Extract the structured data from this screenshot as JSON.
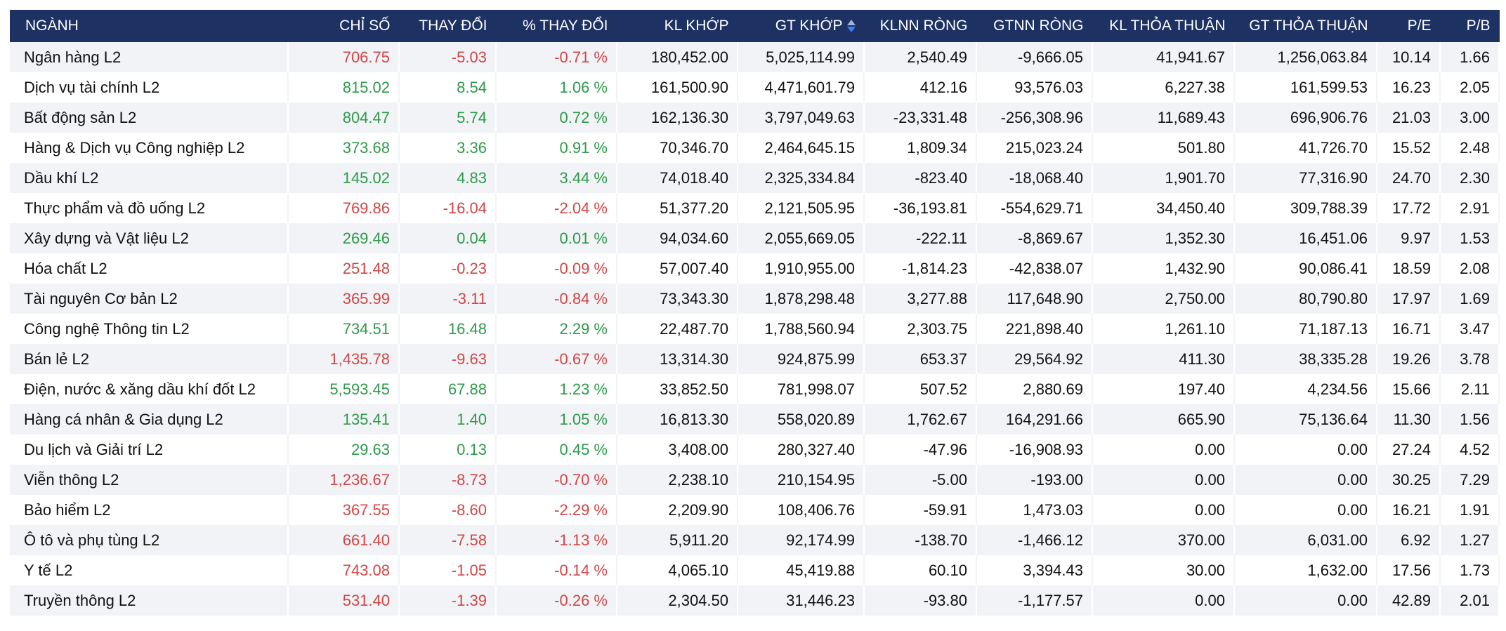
{
  "colors": {
    "header_bg": "#1e3163",
    "up": "#2e9a4a",
    "down": "#d14646",
    "stripe": "#f1f3f6"
  },
  "headers": {
    "nganh": "NGÀNH",
    "chi_so": "CHỈ SỐ",
    "thay_doi": "THAY ĐỔI",
    "pct_thay_doi": "% THAY ĐỔI",
    "kl_khop": "KL KHỚP",
    "gt_khop": "GT KHỚP",
    "klnn_rong": "KLNN RÒNG",
    "gtnn_rong": "GTNN RÒNG",
    "kl_thoa_thuan": "KL THỎA THUẬN",
    "gt_thoa_thuan": "GT THỎA THUẬN",
    "pe": "P/E",
    "pb": "P/B"
  },
  "sort_icon": "sort-icon",
  "rows": [
    {
      "name": "Ngân hàng L2",
      "trend": "down",
      "chi_so": "706.75",
      "thay_doi": "-5.03",
      "pct": "-0.71 %",
      "kl_khop": "180,452.00",
      "gt_khop": "5,025,114.99",
      "klnn": "2,540.49",
      "gtnn": "-9,666.05",
      "kl_tt": "41,941.67",
      "gt_tt": "1,256,063.84",
      "pe": "10.14",
      "pb": "1.66"
    },
    {
      "name": "Dịch vụ tài chính L2",
      "trend": "up",
      "chi_so": "815.02",
      "thay_doi": "8.54",
      "pct": "1.06 %",
      "kl_khop": "161,500.90",
      "gt_khop": "4,471,601.79",
      "klnn": "412.16",
      "gtnn": "93,576.03",
      "kl_tt": "6,227.38",
      "gt_tt": "161,599.53",
      "pe": "16.23",
      "pb": "2.05"
    },
    {
      "name": "Bất động sản L2",
      "trend": "up",
      "chi_so": "804.47",
      "thay_doi": "5.74",
      "pct": "0.72 %",
      "kl_khop": "162,136.30",
      "gt_khop": "3,797,049.63",
      "klnn": "-23,331.48",
      "gtnn": "-256,308.96",
      "kl_tt": "11,689.43",
      "gt_tt": "696,906.76",
      "pe": "21.03",
      "pb": "3.00"
    },
    {
      "name": "Hàng & Dịch vụ Công nghiệp L2",
      "trend": "up",
      "chi_so": "373.68",
      "thay_doi": "3.36",
      "pct": "0.91 %",
      "kl_khop": "70,346.70",
      "gt_khop": "2,464,645.15",
      "klnn": "1,809.34",
      "gtnn": "215,023.24",
      "kl_tt": "501.80",
      "gt_tt": "41,726.70",
      "pe": "15.52",
      "pb": "2.48"
    },
    {
      "name": "Dầu khí L2",
      "trend": "up",
      "chi_so": "145.02",
      "thay_doi": "4.83",
      "pct": "3.44 %",
      "kl_khop": "74,018.40",
      "gt_khop": "2,325,334.84",
      "klnn": "-823.40",
      "gtnn": "-18,068.40",
      "kl_tt": "1,901.70",
      "gt_tt": "77,316.90",
      "pe": "24.70",
      "pb": "2.30"
    },
    {
      "name": "Thực phẩm và đồ uống L2",
      "trend": "down",
      "chi_so": "769.86",
      "thay_doi": "-16.04",
      "pct": "-2.04 %",
      "kl_khop": "51,377.20",
      "gt_khop": "2,121,505.95",
      "klnn": "-36,193.81",
      "gtnn": "-554,629.71",
      "kl_tt": "34,450.40",
      "gt_tt": "309,788.39",
      "pe": "17.72",
      "pb": "2.91"
    },
    {
      "name": "Xây dựng và Vật liệu L2",
      "trend": "up",
      "chi_so": "269.46",
      "thay_doi": "0.04",
      "pct": "0.01 %",
      "kl_khop": "94,034.60",
      "gt_khop": "2,055,669.05",
      "klnn": "-222.11",
      "gtnn": "-8,869.67",
      "kl_tt": "1,352.30",
      "gt_tt": "16,451.06",
      "pe": "9.97",
      "pb": "1.53"
    },
    {
      "name": "Hóa chất L2",
      "trend": "down",
      "chi_so": "251.48",
      "thay_doi": "-0.23",
      "pct": "-0.09 %",
      "kl_khop": "57,007.40",
      "gt_khop": "1,910,955.00",
      "klnn": "-1,814.23",
      "gtnn": "-42,838.07",
      "kl_tt": "1,432.90",
      "gt_tt": "90,086.41",
      "pe": "18.59",
      "pb": "2.08"
    },
    {
      "name": "Tài nguyên Cơ bản L2",
      "trend": "down",
      "chi_so": "365.99",
      "thay_doi": "-3.11",
      "pct": "-0.84 %",
      "kl_khop": "73,343.30",
      "gt_khop": "1,878,298.48",
      "klnn": "3,277.88",
      "gtnn": "117,648.90",
      "kl_tt": "2,750.00",
      "gt_tt": "80,790.80",
      "pe": "17.97",
      "pb": "1.69"
    },
    {
      "name": "Công nghệ Thông tin L2",
      "trend": "up",
      "chi_so": "734.51",
      "thay_doi": "16.48",
      "pct": "2.29 %",
      "kl_khop": "22,487.70",
      "gt_khop": "1,788,560.94",
      "klnn": "2,303.75",
      "gtnn": "221,898.40",
      "kl_tt": "1,261.10",
      "gt_tt": "71,187.13",
      "pe": "16.71",
      "pb": "3.47"
    },
    {
      "name": "Bán lẻ L2",
      "trend": "down",
      "chi_so": "1,435.78",
      "thay_doi": "-9.63",
      "pct": "-0.67 %",
      "kl_khop": "13,314.30",
      "gt_khop": "924,875.99",
      "klnn": "653.37",
      "gtnn": "29,564.92",
      "kl_tt": "411.30",
      "gt_tt": "38,335.28",
      "pe": "19.26",
      "pb": "3.78"
    },
    {
      "name": "Điện, nước & xăng dầu khí đốt L2",
      "trend": "up",
      "chi_so": "5,593.45",
      "thay_doi": "67.88",
      "pct": "1.23 %",
      "kl_khop": "33,852.50",
      "gt_khop": "781,998.07",
      "klnn": "507.52",
      "gtnn": "2,880.69",
      "kl_tt": "197.40",
      "gt_tt": "4,234.56",
      "pe": "15.66",
      "pb": "2.11"
    },
    {
      "name": "Hàng cá nhân & Gia dụng L2",
      "trend": "up",
      "chi_so": "135.41",
      "thay_doi": "1.40",
      "pct": "1.05 %",
      "kl_khop": "16,813.30",
      "gt_khop": "558,020.89",
      "klnn": "1,762.67",
      "gtnn": "164,291.66",
      "kl_tt": "665.90",
      "gt_tt": "75,136.64",
      "pe": "11.30",
      "pb": "1.56"
    },
    {
      "name": "Du lịch và Giải trí L2",
      "trend": "up",
      "chi_so": "29.63",
      "thay_doi": "0.13",
      "pct": "0.45 %",
      "kl_khop": "3,408.00",
      "gt_khop": "280,327.40",
      "klnn": "-47.96",
      "gtnn": "-16,908.93",
      "kl_tt": "0.00",
      "gt_tt": "0.00",
      "pe": "27.24",
      "pb": "4.52"
    },
    {
      "name": "Viễn thông L2",
      "trend": "down",
      "chi_so": "1,236.67",
      "thay_doi": "-8.73",
      "pct": "-0.70 %",
      "kl_khop": "2,238.10",
      "gt_khop": "210,154.95",
      "klnn": "-5.00",
      "gtnn": "-193.00",
      "kl_tt": "0.00",
      "gt_tt": "0.00",
      "pe": "30.25",
      "pb": "7.29"
    },
    {
      "name": "Bảo hiểm L2",
      "trend": "down",
      "chi_so": "367.55",
      "thay_doi": "-8.60",
      "pct": "-2.29 %",
      "kl_khop": "2,209.90",
      "gt_khop": "108,406.76",
      "klnn": "-59.91",
      "gtnn": "1,473.03",
      "kl_tt": "0.00",
      "gt_tt": "0.00",
      "pe": "16.21",
      "pb": "1.91"
    },
    {
      "name": "Ô tô và phụ tùng L2",
      "trend": "down",
      "chi_so": "661.40",
      "thay_doi": "-7.58",
      "pct": "-1.13 %",
      "kl_khop": "5,911.20",
      "gt_khop": "92,174.99",
      "klnn": "-138.70",
      "gtnn": "-1,466.12",
      "kl_tt": "370.00",
      "gt_tt": "6,031.00",
      "pe": "6.92",
      "pb": "1.27"
    },
    {
      "name": "Y tế L2",
      "trend": "down",
      "chi_so": "743.08",
      "thay_doi": "-1.05",
      "pct": "-0.14 %",
      "kl_khop": "4,065.10",
      "gt_khop": "45,419.88",
      "klnn": "60.10",
      "gtnn": "3,394.43",
      "kl_tt": "30.00",
      "gt_tt": "1,632.00",
      "pe": "17.56",
      "pb": "1.73"
    },
    {
      "name": "Truyền thông L2",
      "trend": "down",
      "chi_so": "531.40",
      "thay_doi": "-1.39",
      "pct": "-0.26 %",
      "kl_khop": "2,304.50",
      "gt_khop": "31,446.23",
      "klnn": "-93.80",
      "gtnn": "-1,177.57",
      "kl_tt": "0.00",
      "gt_tt": "0.00",
      "pe": "42.89",
      "pb": "2.01"
    }
  ]
}
